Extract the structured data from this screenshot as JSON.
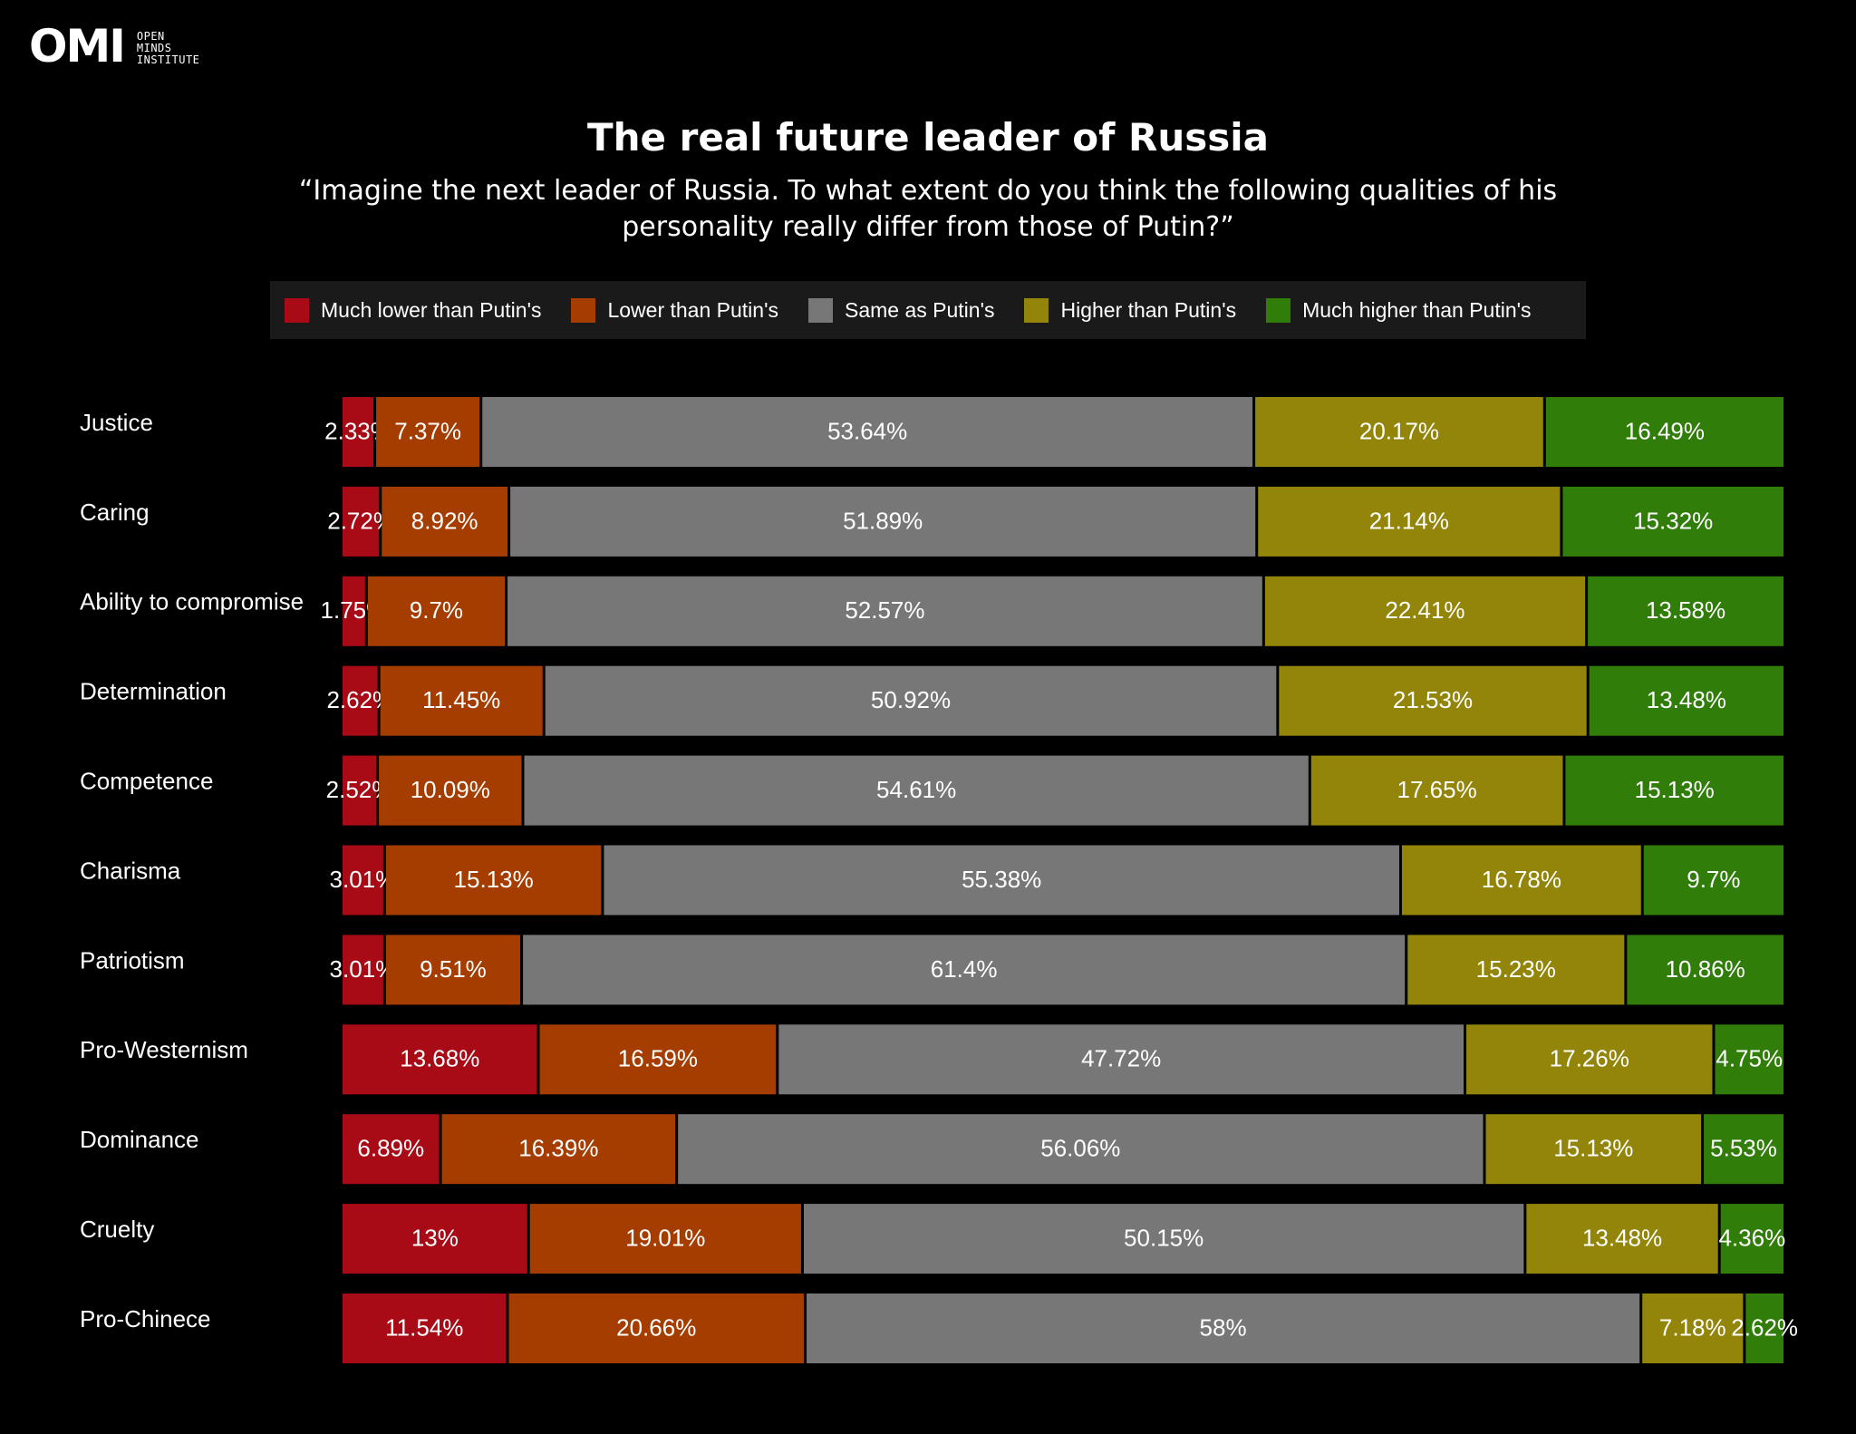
{
  "logo": {
    "mark": "OMI",
    "lines": [
      "OPEN",
      "MINDS",
      "INSTITUTE"
    ]
  },
  "chart_data": {
    "type": "bar",
    "orientation": "horizontal-stacked-100",
    "title": "The real future leader of Russia",
    "subtitle": "“Imagine the next leader of Russia. To what extent do you think the following qualities of his personality really differ from those of Putin?”",
    "legend_position": "top",
    "grid": false,
    "xlim": [
      0,
      100
    ],
    "categories": [
      "Justice",
      "Caring",
      "Ability to compromise",
      "Determination",
      "Competence",
      "Charisma",
      "Patriotism",
      "Pro-Westernism",
      "Dominance",
      "Cruelty",
      "Pro-Chinece"
    ],
    "series": [
      {
        "name": "Much lower than Putin's",
        "color": "#a80a16",
        "values": [
          2.33,
          2.72,
          1.75,
          2.62,
          2.52,
          3.01,
          3.01,
          13.68,
          6.89,
          13,
          11.54
        ],
        "labels": [
          "2.33%",
          "2.72%",
          "1.75%",
          "2.62%",
          "2.52%",
          "3.01%",
          "3.01%",
          "13.68%",
          "6.89%",
          "13%",
          "11.54%"
        ]
      },
      {
        "name": "Lower than Putin's",
        "color": "#a53c00",
        "values": [
          7.37,
          8.92,
          9.7,
          11.45,
          10.09,
          15.13,
          9.51,
          16.59,
          16.39,
          19.01,
          20.66
        ],
        "labels": [
          "7.37%",
          "8.92%",
          "9.7%",
          "11.45%",
          "10.09%",
          "15.13%",
          "9.51%",
          "16.59%",
          "16.39%",
          "19.01%",
          "20.66%"
        ]
      },
      {
        "name": "Same as Putin's",
        "color": "#777777",
        "values": [
          53.64,
          51.89,
          52.57,
          50.92,
          54.61,
          55.38,
          61.4,
          47.72,
          56.06,
          50.15,
          58
        ],
        "labels": [
          "53.64%",
          "51.89%",
          "52.57%",
          "50.92%",
          "54.61%",
          "55.38%",
          "61.4%",
          "47.72%",
          "56.06%",
          "50.15%",
          "58%"
        ]
      },
      {
        "name": "Higher than Putin's",
        "color": "#928509",
        "values": [
          20.17,
          21.14,
          22.41,
          21.53,
          17.65,
          16.78,
          15.23,
          17.26,
          15.13,
          13.48,
          7.18
        ],
        "labels": [
          "20.17%",
          "21.14%",
          "22.41%",
          "21.53%",
          "17.65%",
          "16.78%",
          "15.23%",
          "17.26%",
          "15.13%",
          "13.48%",
          "7.18%"
        ]
      },
      {
        "name": "Much higher than Putin's",
        "color": "#317d09",
        "values": [
          16.49,
          15.32,
          13.58,
          13.48,
          15.13,
          9.7,
          10.86,
          4.75,
          5.53,
          4.36,
          2.62
        ],
        "labels": [
          "16.49%",
          "15.32%",
          "13.58%",
          "13.48%",
          "15.13%",
          "9.7%",
          "10.86%",
          "4.75%",
          "5.53%",
          "4.36%",
          "2.62%"
        ]
      }
    ]
  }
}
